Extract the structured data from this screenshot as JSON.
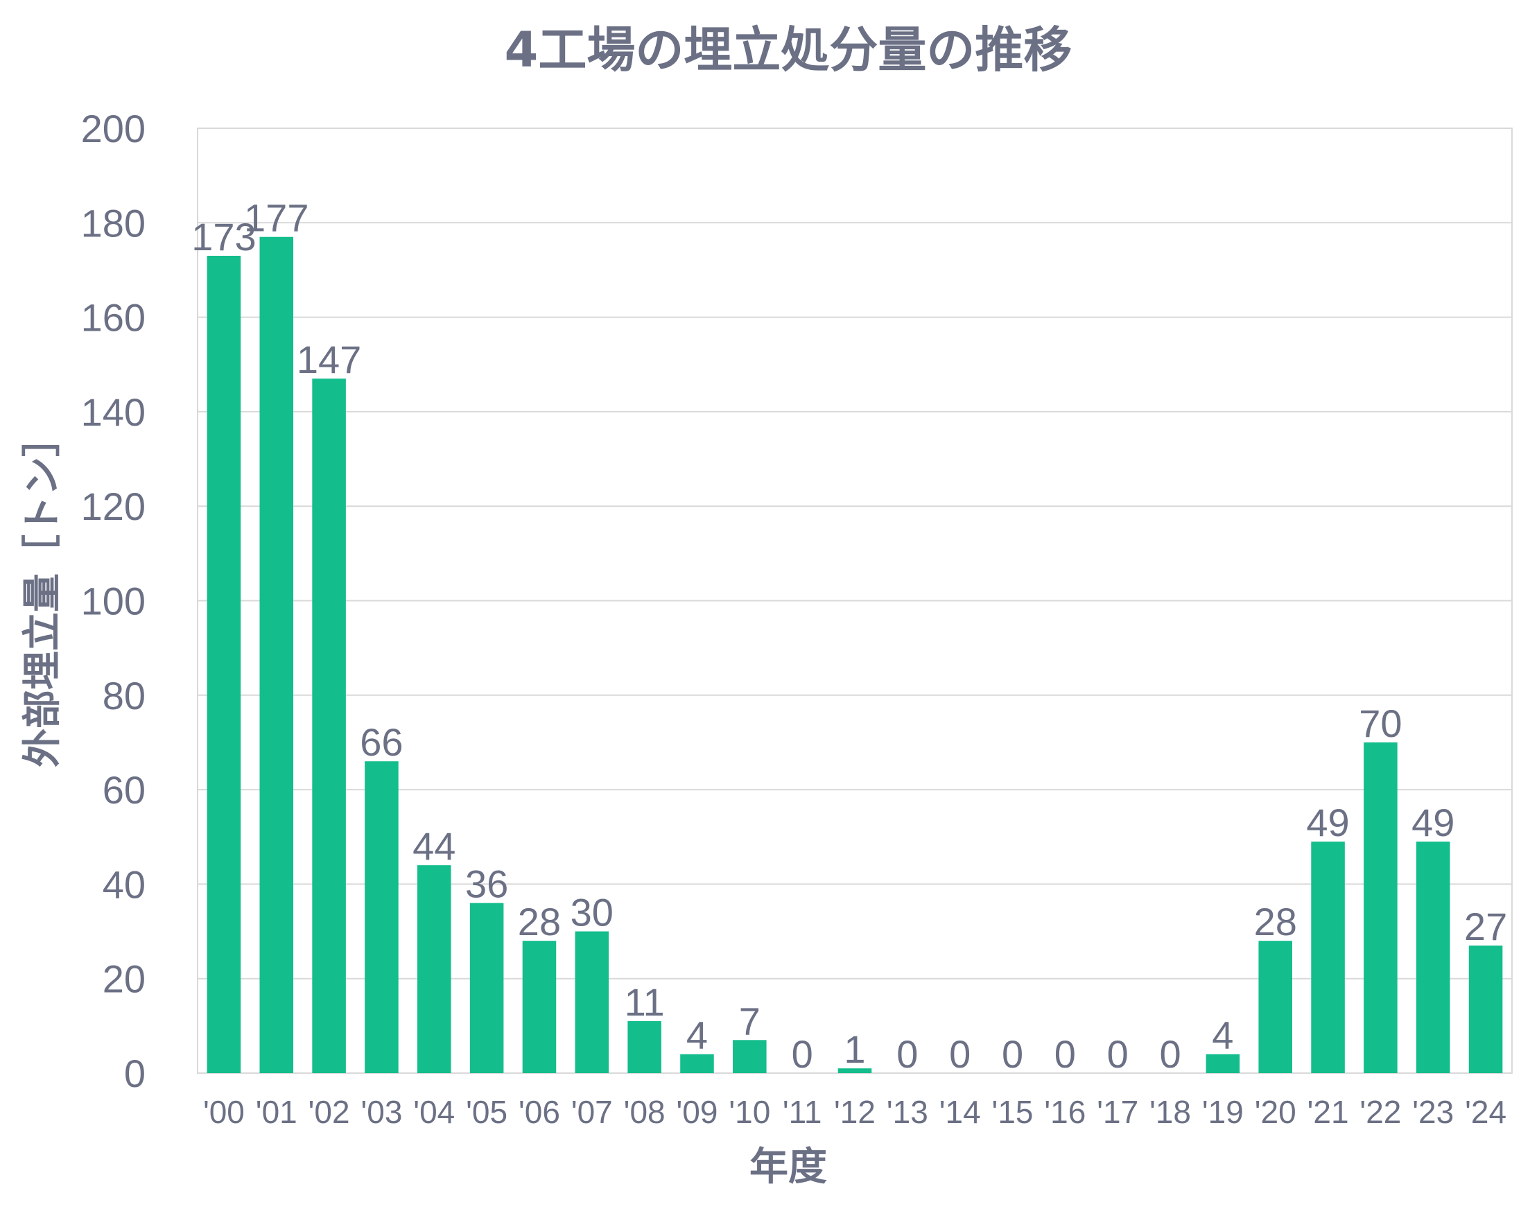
{
  "chart_data": {
    "type": "bar",
    "title": "4工場の埋立処分量の推移",
    "xlabel": "年度",
    "ylabel": "外部埋立量［トン］",
    "categories": [
      "'00",
      "'01",
      "'02",
      "'03",
      "'04",
      "'05",
      "'06",
      "'07",
      "'08",
      "'09",
      "'10",
      "'11",
      "'12",
      "'13",
      "'14",
      "'15",
      "'16",
      "'17",
      "'18",
      "'19",
      "'20",
      "'21",
      "'22",
      "'23",
      "'24"
    ],
    "values": [
      173,
      177,
      147,
      66,
      44,
      36,
      28,
      30,
      11,
      4,
      7,
      0,
      1,
      0,
      0,
      0,
      0,
      0,
      0,
      4,
      28,
      49,
      70,
      49,
      27
    ],
    "ylim": [
      0,
      200
    ],
    "yticks": [
      0,
      20,
      40,
      60,
      80,
      100,
      120,
      140,
      160,
      180,
      200
    ],
    "grid": true,
    "bar_color": "#13bd8c",
    "text_color": "#6b7085",
    "grid_color": "#d9d9d9"
  }
}
